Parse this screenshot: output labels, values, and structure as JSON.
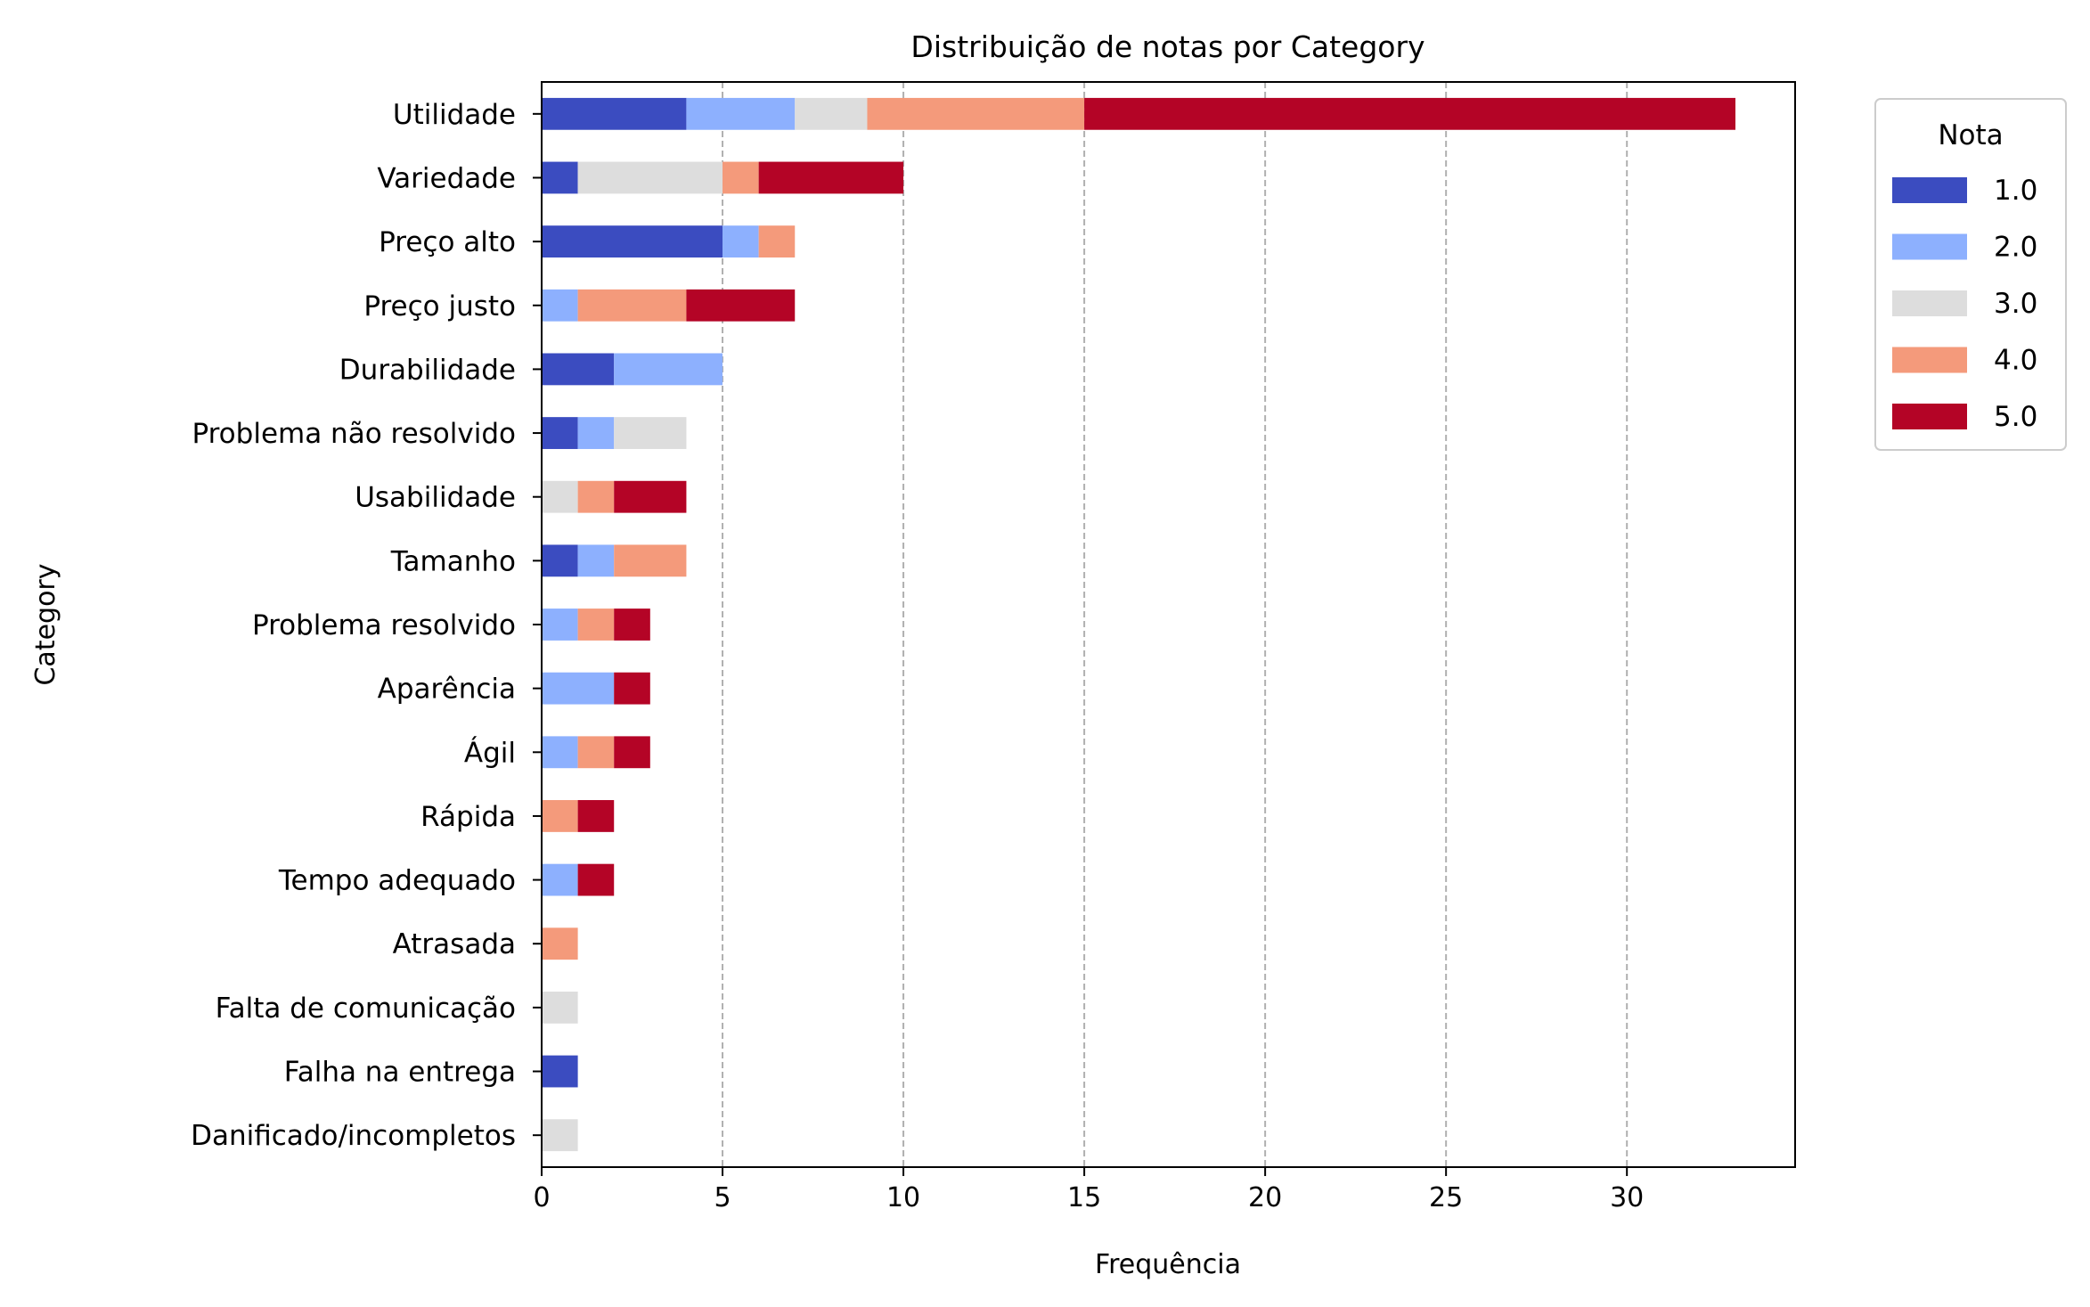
{
  "chart_data": {
    "type": "bar",
    "orientation": "horizontal",
    "stacked": true,
    "title": "Distribuição de notas por Category",
    "xlabel": "Frequência",
    "ylabel": "Category",
    "xlim": [
      0,
      34.65
    ],
    "xticks": [
      0,
      5,
      10,
      15,
      20,
      25,
      30
    ],
    "grid": "x-axis dashed",
    "legend": {
      "title": "Nota",
      "placement": "outside right, top"
    },
    "categories": [
      "Utilidade",
      "Variedade",
      "Preço alto",
      "Preço justo",
      "Durabilidade",
      "Problema não resolvido",
      "Usabilidade",
      "Tamanho",
      "Problema resolvido",
      "Aparência",
      "Ágil",
      "Rápida",
      "Tempo adequado",
      "Atrasada",
      "Falta de comunicação",
      "Falha na entrega",
      "Danificado/incompletos"
    ],
    "series": [
      {
        "name": "1.0",
        "color": "#3b4cc0",
        "values": [
          4,
          1,
          5,
          0,
          2,
          1,
          0,
          1,
          0,
          0,
          0,
          0,
          0,
          0,
          0,
          1,
          0
        ]
      },
      {
        "name": "2.0",
        "color": "#8db0fe",
        "values": [
          3,
          0,
          1,
          1,
          3,
          1,
          0,
          1,
          1,
          2,
          1,
          0,
          1,
          0,
          0,
          0,
          0
        ]
      },
      {
        "name": "3.0",
        "color": "#dddddd",
        "values": [
          2,
          4,
          0,
          0,
          0,
          2,
          1,
          0,
          0,
          0,
          0,
          0,
          0,
          0,
          1,
          0,
          1
        ]
      },
      {
        "name": "4.0",
        "color": "#f49a7b",
        "values": [
          6,
          1,
          1,
          3,
          0,
          0,
          1,
          2,
          1,
          0,
          1,
          1,
          0,
          1,
          0,
          0,
          0
        ]
      },
      {
        "name": "5.0",
        "color": "#b40426",
        "values": [
          18,
          4,
          0,
          3,
          0,
          0,
          2,
          0,
          1,
          1,
          1,
          1,
          1,
          0,
          0,
          0,
          0
        ]
      }
    ]
  }
}
